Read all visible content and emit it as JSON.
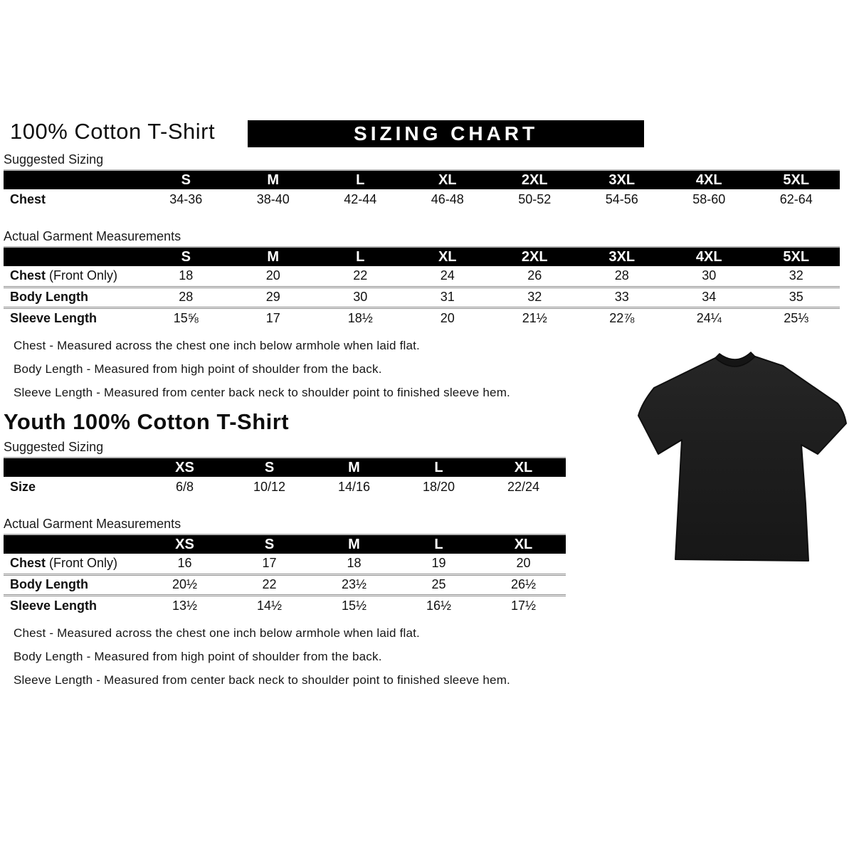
{
  "header": {
    "title": "100% Cotton T-Shirt",
    "banner": "SIZING CHART"
  },
  "adult": {
    "suggested_label": "Suggested Sizing",
    "suggested": {
      "columns": [
        "S",
        "M",
        "L",
        "XL",
        "2XL",
        "3XL",
        "4XL",
        "5XL"
      ],
      "rows": [
        {
          "label": "Chest",
          "suffix": "",
          "values": [
            "34-36",
            "38-40",
            "42-44",
            "46-48",
            "50-52",
            "54-56",
            "58-60",
            "62-64"
          ]
        }
      ]
    },
    "actual_label": "Actual Garment Measurements",
    "actual": {
      "columns": [
        "S",
        "M",
        "L",
        "XL",
        "2XL",
        "3XL",
        "4XL",
        "5XL"
      ],
      "rows": [
        {
          "label": "Chest",
          "suffix": " (Front Only)",
          "values": [
            "18",
            "20",
            "22",
            "24",
            "26",
            "28",
            "30",
            "32"
          ]
        },
        {
          "label": "Body Length",
          "suffix": "",
          "values": [
            "28",
            "29",
            "30",
            "31",
            "32",
            "33",
            "34",
            "35"
          ]
        },
        {
          "label": "Sleeve Length",
          "suffix": "",
          "values": [
            "15⅝",
            "17",
            "18½",
            "20",
            "21½",
            "22⅞",
            "24¼",
            "25⅓"
          ]
        }
      ]
    },
    "notes": [
      "Chest - Measured across the chest one inch below armhole when laid flat.",
      "Body Length - Measured from high point of shoulder from the back.",
      "Sleeve Length - Measured from center back neck to shoulder point to finished sleeve hem."
    ]
  },
  "youth": {
    "title": "Youth 100% Cotton T-Shirt",
    "suggested_label": "Suggested Sizing",
    "suggested": {
      "columns": [
        "XS",
        "S",
        "M",
        "L",
        "XL"
      ],
      "rows": [
        {
          "label": "Size",
          "suffix": "",
          "values": [
            "6/8",
            "10/12",
            "14/16",
            "18/20",
            "22/24"
          ]
        }
      ]
    },
    "actual_label": "Actual Garment Measurements",
    "actual": {
      "columns": [
        "XS",
        "S",
        "M",
        "L",
        "XL"
      ],
      "rows": [
        {
          "label": "Chest",
          "suffix": " (Front Only)",
          "values": [
            "16",
            "17",
            "18",
            "19",
            "20"
          ]
        },
        {
          "label": "Body Length",
          "suffix": "",
          "values": [
            "20½",
            "22",
            "23½",
            "25",
            "26½"
          ]
        },
        {
          "label": "Sleeve Length",
          "suffix": "",
          "values": [
            "13½",
            "14½",
            "15½",
            "16½",
            "17½"
          ]
        }
      ]
    },
    "notes": [
      "Chest - Measured across the chest one inch below armhole when laid flat.",
      "Body Length - Measured from high point of shoulder from the back.",
      "Sleeve Length - Measured from center back neck to shoulder point to finished sleeve hem."
    ]
  },
  "image": {
    "label": "black-tshirt-photo",
    "shirt_color": "#1e1e1e",
    "shirt_shadow": "#121212",
    "collar_color": "#161616"
  }
}
